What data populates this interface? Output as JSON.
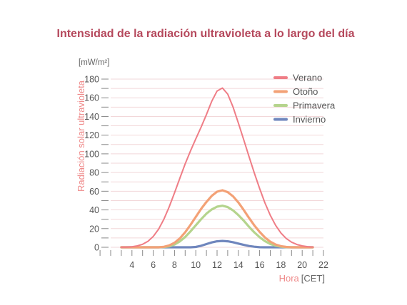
{
  "chart_data": {
    "type": "line",
    "title": "Intensidad de la radiación ultravioleta a lo largo del día",
    "ylabel": "Radiación solar ultravioleta",
    "yunit": "[mW/m²]",
    "xlabel": "Hora",
    "xunit": "[CET]",
    "xlim": [
      2,
      22
    ],
    "ylim": [
      0,
      180
    ],
    "x_ticks": [
      4,
      6,
      8,
      10,
      12,
      14,
      16,
      18,
      20,
      22
    ],
    "y_ticks": [
      0,
      20,
      40,
      60,
      80,
      100,
      120,
      140,
      160,
      180
    ],
    "grid": true,
    "legend_position": "top-right",
    "x": [
      3.0,
      3.5,
      4.0,
      4.5,
      5.0,
      5.5,
      6.0,
      6.5,
      7.0,
      7.5,
      8.0,
      8.5,
      9.0,
      9.5,
      10.0,
      10.5,
      11.0,
      11.5,
      12.0,
      12.5,
      13.0,
      13.5,
      14.0,
      14.5,
      15.0,
      15.5,
      16.0,
      16.5,
      17.0,
      17.5,
      18.0,
      18.5,
      19.0,
      19.5,
      20.0,
      20.5,
      21.0
    ],
    "series": [
      {
        "name": "Verano",
        "color": "#ef7d86",
        "values": [
          0.1,
          0.2,
          0.6,
          1.5,
          3.2,
          6.4,
          11.6,
          19.4,
          30.0,
          43.2,
          58.3,
          74.0,
          89.2,
          103.2,
          116.0,
          128.5,
          142.0,
          156.2,
          167.3,
          170.5,
          164.0,
          150.0,
          133.0,
          115.2,
          97.2,
          79.6,
          62.9,
          47.6,
          34.3,
          23.5,
          15.3,
          9.4,
          5.5,
          3.0,
          1.5,
          0.7,
          0.3
        ]
      },
      {
        "name": "Otoño",
        "color": "#f3a176",
        "values": [
          0.0,
          0.0,
          0.0,
          0.0,
          0.0,
          0.0,
          0.0,
          0.0,
          0.5,
          2.0,
          4.8,
          9.5,
          16.0,
          24.0,
          32.5,
          41.0,
          48.5,
          55.0,
          59.5,
          61.0,
          59.0,
          54.5,
          48.0,
          40.0,
          31.5,
          23.5,
          16.5,
          10.5,
          6.0,
          3.0,
          1.2,
          0.4,
          0.0,
          0.0,
          0.0,
          0.0,
          0.0
        ]
      },
      {
        "name": "Primavera",
        "color": "#b5d48d",
        "values": [
          0.0,
          0.0,
          0.0,
          0.0,
          0.0,
          0.0,
          0.0,
          0.0,
          0.2,
          1.0,
          3.0,
          6.3,
          11.0,
          17.0,
          23.5,
          30.0,
          36.0,
          40.5,
          43.5,
          44.5,
          43.0,
          39.5,
          34.5,
          28.5,
          22.0,
          16.0,
          10.8,
          6.6,
          3.6,
          1.7,
          0.6,
          0.1,
          0.0,
          0.0,
          0.0,
          0.0,
          0.0
        ]
      },
      {
        "name": "Invierno",
        "color": "#6f86bd",
        "values": [
          0.0,
          0.0,
          0.0,
          0.0,
          0.0,
          0.0,
          0.0,
          0.0,
          0.0,
          0.0,
          0.0,
          0.0,
          0.0,
          0.0,
          0.4,
          1.6,
          3.4,
          5.2,
          6.4,
          6.8,
          6.4,
          5.4,
          4.0,
          2.6,
          1.4,
          0.6,
          0.1,
          0.0,
          0.0,
          0.0,
          0.0,
          0.0,
          0.0,
          0.0,
          0.0,
          0.0,
          0.0
        ]
      }
    ]
  }
}
